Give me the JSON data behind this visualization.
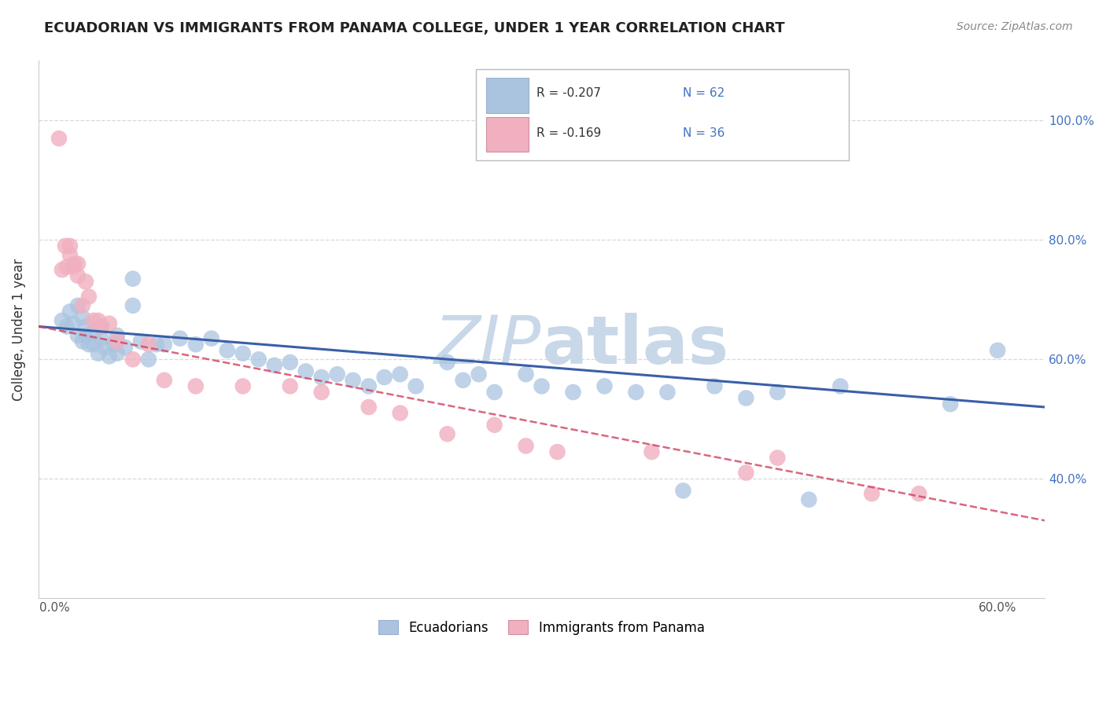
{
  "title": "ECUADORIAN VS IMMIGRANTS FROM PANAMA COLLEGE, UNDER 1 YEAR CORRELATION CHART",
  "source": "Source: ZipAtlas.com",
  "ylabel": "College, Under 1 year",
  "x_ticks": [
    0.0,
    0.1,
    0.2,
    0.3,
    0.4,
    0.5,
    0.6
  ],
  "x_tick_labels": [
    "0.0%",
    "",
    "",
    "",
    "",
    "",
    "60.0%"
  ],
  "y_ticks": [
    0.4,
    0.6,
    0.8,
    1.0
  ],
  "y_tick_labels": [
    "40.0%",
    "60.0%",
    "80.0%",
    "100.0%"
  ],
  "xlim": [
    -0.01,
    0.63
  ],
  "ylim": [
    0.2,
    1.1
  ],
  "legend_labels": [
    "Ecuadorians",
    "Immigrants from Panama"
  ],
  "legend_r_n": [
    {
      "R": "-0.207",
      "N": "62"
    },
    {
      "R": "-0.169",
      "N": "36"
    }
  ],
  "blue_color": "#aac4e0",
  "pink_color": "#f0b0c0",
  "blue_line_color": "#3a5fa8",
  "pink_line_color": "#d04060",
  "watermark_color": "#c8d8e8",
  "blue_x": [
    0.005,
    0.008,
    0.01,
    0.012,
    0.015,
    0.015,
    0.018,
    0.018,
    0.02,
    0.02,
    0.022,
    0.025,
    0.025,
    0.028,
    0.03,
    0.03,
    0.032,
    0.035,
    0.038,
    0.04,
    0.04,
    0.045,
    0.05,
    0.05,
    0.055,
    0.06,
    0.065,
    0.07,
    0.08,
    0.09,
    0.1,
    0.11,
    0.12,
    0.13,
    0.14,
    0.15,
    0.16,
    0.17,
    0.18,
    0.19,
    0.2,
    0.21,
    0.22,
    0.23,
    0.25,
    0.26,
    0.27,
    0.28,
    0.3,
    0.31,
    0.33,
    0.35,
    0.37,
    0.39,
    0.4,
    0.42,
    0.44,
    0.46,
    0.48,
    0.5,
    0.57,
    0.6
  ],
  "blue_y": [
    0.665,
    0.655,
    0.68,
    0.66,
    0.69,
    0.64,
    0.67,
    0.63,
    0.655,
    0.64,
    0.625,
    0.645,
    0.625,
    0.61,
    0.655,
    0.635,
    0.62,
    0.605,
    0.625,
    0.64,
    0.61,
    0.62,
    0.735,
    0.69,
    0.63,
    0.6,
    0.625,
    0.625,
    0.635,
    0.625,
    0.635,
    0.615,
    0.61,
    0.6,
    0.59,
    0.595,
    0.58,
    0.57,
    0.575,
    0.565,
    0.555,
    0.57,
    0.575,
    0.555,
    0.595,
    0.565,
    0.575,
    0.545,
    0.575,
    0.555,
    0.545,
    0.555,
    0.545,
    0.545,
    0.38,
    0.555,
    0.535,
    0.545,
    0.365,
    0.555,
    0.525,
    0.615
  ],
  "pink_x": [
    0.003,
    0.005,
    0.007,
    0.008,
    0.01,
    0.01,
    0.012,
    0.013,
    0.015,
    0.015,
    0.018,
    0.02,
    0.022,
    0.025,
    0.028,
    0.03,
    0.035,
    0.04,
    0.05,
    0.06,
    0.07,
    0.09,
    0.12,
    0.15,
    0.17,
    0.2,
    0.22,
    0.25,
    0.28,
    0.3,
    0.32,
    0.38,
    0.44,
    0.46,
    0.52,
    0.55
  ],
  "pink_y": [
    0.97,
    0.75,
    0.79,
    0.755,
    0.775,
    0.79,
    0.755,
    0.76,
    0.74,
    0.76,
    0.69,
    0.73,
    0.705,
    0.665,
    0.665,
    0.655,
    0.66,
    0.63,
    0.6,
    0.625,
    0.565,
    0.555,
    0.555,
    0.555,
    0.545,
    0.52,
    0.51,
    0.475,
    0.49,
    0.455,
    0.445,
    0.445,
    0.41,
    0.435,
    0.375,
    0.375
  ],
  "blue_reg": [
    0.655,
    0.52
  ],
  "pink_reg": [
    0.655,
    0.33
  ]
}
